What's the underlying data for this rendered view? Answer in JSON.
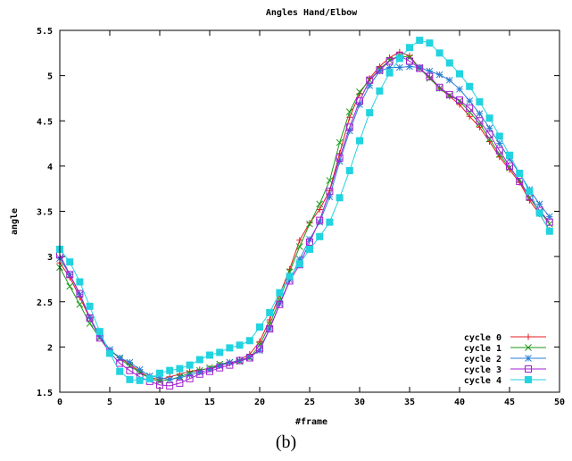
{
  "caption": "(b)",
  "chart_data": {
    "type": "line",
    "title": "Angles Hand/Elbow",
    "xlabel": "#frame",
    "ylabel": "angle",
    "xlim": [
      0,
      50
    ],
    "ylim": [
      1.5,
      5.5
    ],
    "xticks": [
      0,
      5,
      10,
      15,
      20,
      25,
      30,
      35,
      40,
      45,
      50
    ],
    "yticks": [
      1.5,
      2,
      2.5,
      3,
      3.5,
      4,
      4.5,
      5,
      5.5
    ],
    "xtick_labels": [
      "0",
      "5",
      "10",
      "15",
      "20",
      "25",
      "30",
      "35",
      "40",
      "45",
      "50"
    ],
    "ytick_labels": [
      "1.5",
      "2",
      "2.5",
      "3",
      "3.5",
      "4",
      "4.5",
      "5",
      "5.5"
    ],
    "grid": false,
    "legend_position": "bottom-right",
    "series": [
      {
        "name": "cycle 0",
        "color": "#e41a1c",
        "marker": "plus",
        "x": [
          0,
          1,
          2,
          3,
          4,
          5,
          6,
          7,
          8,
          9,
          10,
          11,
          12,
          13,
          14,
          15,
          16,
          17,
          18,
          19,
          20,
          21,
          22,
          23,
          24,
          25,
          26,
          27,
          28,
          29,
          30,
          31,
          32,
          33,
          34,
          35,
          36,
          37,
          38,
          39,
          40,
          41,
          42,
          43,
          44,
          45,
          46,
          47,
          48,
          49
        ],
        "y": [
          2.93,
          2.77,
          2.55,
          2.32,
          2.12,
          1.97,
          1.88,
          1.81,
          1.73,
          1.66,
          1.64,
          1.67,
          1.7,
          1.73,
          1.75,
          1.76,
          1.8,
          1.82,
          1.86,
          1.92,
          2.06,
          2.3,
          2.58,
          2.86,
          3.18,
          3.37,
          3.52,
          3.73,
          4.14,
          4.54,
          4.8,
          4.97,
          5.1,
          5.2,
          5.26,
          5.22,
          5.08,
          4.98,
          4.86,
          4.77,
          4.68,
          4.55,
          4.43,
          4.27,
          4.1,
          3.96,
          3.82,
          3.62,
          3.47,
          3.29
        ]
      },
      {
        "name": "cycle 1",
        "color": "#1a9a1a",
        "marker": "cross",
        "x": [
          0,
          1,
          2,
          3,
          4,
          5,
          6,
          7,
          8,
          9,
          10,
          11,
          12,
          13,
          14,
          15,
          16,
          17,
          18,
          19,
          20,
          21,
          22,
          23,
          24,
          25,
          26,
          27,
          28,
          29,
          30,
          31,
          32,
          33,
          34,
          35,
          36,
          37,
          38,
          39,
          40,
          41,
          42,
          43,
          44,
          45,
          46,
          47,
          48,
          49
        ],
        "y": [
          2.88,
          2.67,
          2.47,
          2.26,
          2.1,
          1.97,
          1.87,
          1.79,
          1.72,
          1.65,
          1.62,
          1.64,
          1.67,
          1.71,
          1.74,
          1.77,
          1.81,
          1.83,
          1.84,
          1.88,
          2.02,
          2.25,
          2.52,
          2.83,
          3.11,
          3.36,
          3.58,
          3.84,
          4.26,
          4.6,
          4.82,
          4.95,
          5.07,
          5.17,
          5.22,
          5.2,
          5.08,
          4.97,
          4.86,
          4.78,
          4.72,
          4.6,
          4.47,
          4.3,
          4.13,
          3.98,
          3.85,
          3.65,
          3.5,
          3.36
        ]
      },
      {
        "name": "cycle 2",
        "color": "#2a7fd5",
        "marker": "star",
        "x": [
          0,
          1,
          2,
          3,
          4,
          5,
          6,
          7,
          8,
          9,
          10,
          11,
          12,
          13,
          14,
          15,
          16,
          17,
          18,
          19,
          20,
          21,
          22,
          23,
          24,
          25,
          26,
          27,
          28,
          29,
          30,
          31,
          32,
          33,
          34,
          35,
          36,
          37,
          38,
          39,
          40,
          41,
          42,
          43,
          44,
          45,
          46,
          47,
          48,
          49
        ],
        "y": [
          2.98,
          2.8,
          2.58,
          2.33,
          2.12,
          1.97,
          1.88,
          1.83,
          1.75,
          1.68,
          1.66,
          1.64,
          1.66,
          1.69,
          1.72,
          1.75,
          1.79,
          1.83,
          1.85,
          1.89,
          1.96,
          2.2,
          2.48,
          2.74,
          2.97,
          3.19,
          3.38,
          3.66,
          4.05,
          4.39,
          4.68,
          4.89,
          5.05,
          5.09,
          5.09,
          5.1,
          5.09,
          5.05,
          5.01,
          4.95,
          4.85,
          4.72,
          4.58,
          4.42,
          4.25,
          4.08,
          3.92,
          3.74,
          3.58,
          3.44
        ]
      },
      {
        "name": "cycle 3",
        "color": "#a21fd0",
        "marker": "square-open",
        "x": [
          0,
          1,
          2,
          3,
          4,
          5,
          6,
          7,
          8,
          9,
          10,
          11,
          12,
          13,
          14,
          15,
          16,
          17,
          18,
          19,
          20,
          21,
          22,
          23,
          24,
          25,
          26,
          27,
          28,
          29,
          30,
          31,
          32,
          33,
          34,
          35,
          36,
          37,
          38,
          39,
          40,
          41,
          42,
          43,
          44,
          45,
          46,
          47,
          48,
          49
        ],
        "y": [
          3.02,
          2.8,
          2.59,
          2.32,
          2.1,
          1.94,
          1.82,
          1.74,
          1.67,
          1.62,
          1.58,
          1.57,
          1.6,
          1.65,
          1.7,
          1.73,
          1.77,
          1.8,
          1.85,
          1.88,
          1.98,
          2.2,
          2.47,
          2.73,
          2.91,
          3.16,
          3.4,
          3.72,
          4.09,
          4.43,
          4.72,
          4.95,
          5.06,
          5.16,
          5.22,
          5.16,
          5.08,
          4.99,
          4.87,
          4.79,
          4.73,
          4.64,
          4.5,
          4.35,
          4.17,
          4.0,
          3.83,
          3.66,
          3.51,
          3.38
        ]
      },
      {
        "name": "cycle 4",
        "color": "#22d3e0",
        "marker": "square-filled",
        "x": [
          0,
          1,
          2,
          3,
          4,
          5,
          6,
          7,
          8,
          9,
          10,
          11,
          12,
          13,
          14,
          15,
          16,
          17,
          18,
          19,
          20,
          21,
          22,
          23,
          24,
          25,
          26,
          27,
          28,
          29,
          30,
          31,
          32,
          33,
          34,
          35,
          36,
          37,
          38,
          39,
          40,
          41,
          42,
          43,
          44,
          45,
          46,
          47,
          48,
          49
        ],
        "y": [
          3.08,
          2.94,
          2.72,
          2.45,
          2.17,
          1.93,
          1.73,
          1.64,
          1.63,
          1.65,
          1.71,
          1.74,
          1.76,
          1.8,
          1.86,
          1.91,
          1.94,
          1.99,
          2.02,
          2.07,
          2.22,
          2.38,
          2.6,
          2.78,
          2.92,
          3.08,
          3.22,
          3.38,
          3.65,
          3.95,
          4.28,
          4.59,
          4.83,
          5.03,
          5.19,
          5.31,
          5.39,
          5.36,
          5.25,
          5.14,
          5.02,
          4.88,
          4.71,
          4.53,
          4.33,
          4.12,
          3.92,
          3.72,
          3.48,
          3.28
        ]
      }
    ]
  }
}
